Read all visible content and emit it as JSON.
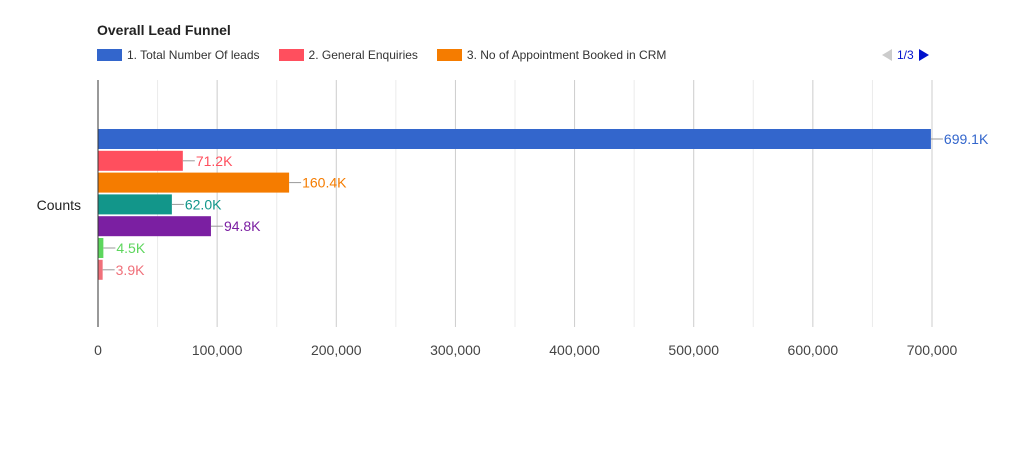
{
  "chart_data": {
    "type": "bar",
    "orientation": "horizontal",
    "title": "Overall Lead Funnel",
    "category": "Counts",
    "xlim": [
      0,
      700000
    ],
    "xticks": [
      0,
      100000,
      200000,
      300000,
      400000,
      500000,
      600000,
      700000
    ],
    "xtick_labels": [
      "0",
      "100,000",
      "200,000",
      "300,000",
      "400,000",
      "500,000",
      "600,000",
      "700,000"
    ],
    "grid": true,
    "legend_position": "top",
    "series": [
      {
        "name": "1. Total Number Of leads",
        "value": 699100,
        "label": "699.1K",
        "color": "#3366cc"
      },
      {
        "name": "2. General Enquiries",
        "value": 71200,
        "label": "71.2K",
        "color": "#ff4f5e"
      },
      {
        "name": "3. No of Appointment Booked in CRM",
        "value": 160400,
        "label": "160.4K",
        "color": "#f57c00"
      },
      {
        "value": 62000,
        "label": "62.0K",
        "color": "#12968a"
      },
      {
        "value": 94800,
        "label": "94.8K",
        "color": "#7b1fa2"
      },
      {
        "value": 4500,
        "label": "4.5K",
        "color": "#5dd65d"
      },
      {
        "value": 3900,
        "label": "3.9K",
        "color": "#f0707a"
      }
    ]
  },
  "legend_entries": [
    {
      "name": "1. Total Number Of leads",
      "color": "#3366cc"
    },
    {
      "name": "2. General Enquiries",
      "color": "#ff4f5e"
    },
    {
      "name": "3. No of Appointment Booked in CRM",
      "color": "#f57c00"
    }
  ],
  "pager": {
    "label": "1/3"
  }
}
